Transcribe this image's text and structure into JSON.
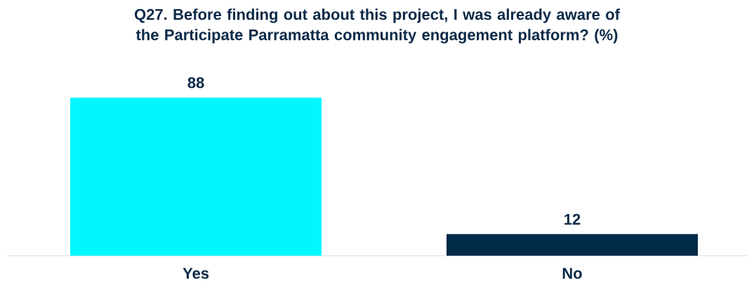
{
  "chart_data": {
    "type": "bar",
    "title": "Q27. Before finding out about this project, I was already aware of the Participate Parramatta community engagement platform? (%)",
    "categories": [
      "Yes",
      "No"
    ],
    "values": [
      88,
      12
    ],
    "colors": [
      "#00f8fc",
      "#002b49"
    ],
    "data_labels": true,
    "tick_labels": "x"
  }
}
